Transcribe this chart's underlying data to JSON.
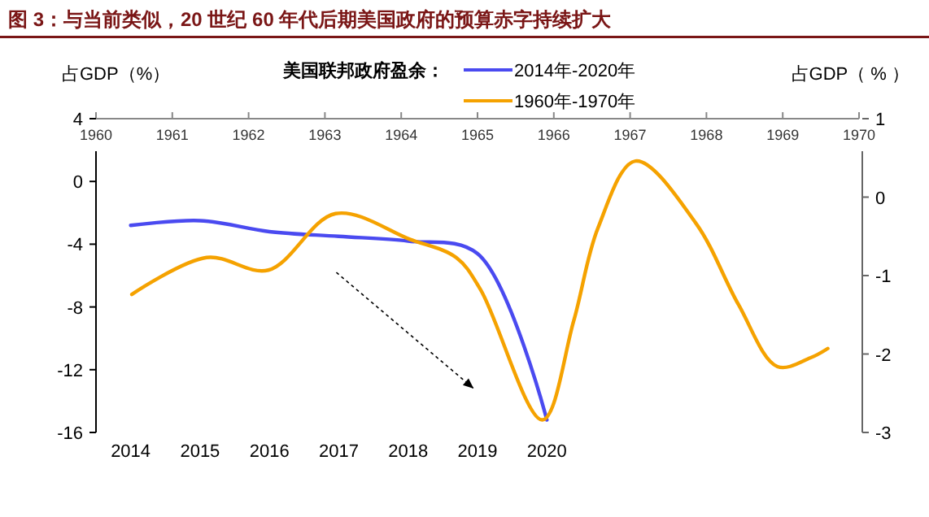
{
  "chart_data": {
    "type": "line",
    "title": "图 3：与当前类似，20 世纪 60 年代后期美国政府的预算赤字持续扩大",
    "ylabel": "占GDP（%）",
    "y2label": "占GDP（ % ）",
    "legend_title": "美国联邦政府盈余：",
    "legend": "top",
    "grid": false,
    "marker": "none",
    "line_style": "solid",
    "xlim": [
      1960,
      1970
    ],
    "xticks": [
      1960,
      1961,
      1962,
      1963,
      1964,
      1965,
      1966,
      1967,
      1968,
      1969,
      1970
    ],
    "x2lim": [
      2013.5,
      2024.5
    ],
    "x2ticks": [
      2014,
      2015,
      2016,
      2017,
      2018,
      2019,
      2020
    ],
    "ylim": [
      -16,
      4
    ],
    "yticks": [
      4,
      0,
      -4,
      -8,
      -12,
      -16
    ],
    "y2lim": [
      -3,
      1
    ],
    "y2ticks": [
      1,
      0,
      -1,
      -2,
      -3
    ],
    "series": [
      {
        "name": "2014年-2020年",
        "color": "#4a4af0",
        "axis": "x2",
        "x": [
          2014,
          2015,
          2016,
          2017,
          2018,
          2019,
          2020
        ],
        "values": [
          -2.8,
          -2.5,
          -3.2,
          -3.5,
          -3.8,
          -4.6,
          -15.2
        ]
      },
      {
        "name": "1960年-1970年",
        "color": "#f5a200",
        "axis": "y2",
        "x": [
          1960.47,
          1961.45,
          1962.26,
          1963.14,
          1964.12,
          1964.72,
          1965.04,
          1965.85,
          1966.26,
          1966.58,
          1967.07,
          1967.86,
          1968.42,
          1968.93,
          1969.36,
          1969.59
        ],
        "values": [
          -1.24,
          -0.77,
          -0.93,
          -0.21,
          -0.54,
          -0.77,
          -1.18,
          -2.84,
          -1.58,
          -0.39,
          0.46,
          -0.33,
          -1.37,
          -2.16,
          -2.05,
          -1.93
        ]
      }
    ]
  }
}
